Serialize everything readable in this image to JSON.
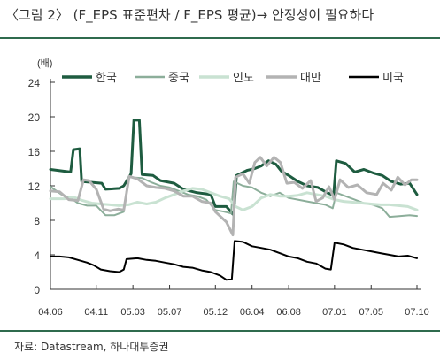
{
  "title": "〈그림 2〉 (F_EPS 표준편차 / F_EPS 평균)→ 안정성이 필요하다",
  "source": "자료: Datastream,  하나대투증권",
  "chart_data": {
    "type": "line",
    "title": "〈그림 2〉 (F_EPS 표준편차 / F_EPS 평균)→ 안정성이 필요하다",
    "ylabel": "(배)",
    "ylim": [
      0,
      24
    ],
    "yticks": [
      0,
      4,
      8,
      12,
      16,
      20,
      24
    ],
    "xlim": [
      0,
      40
    ],
    "xticks": [
      {
        "x": 0,
        "label": "04.06"
      },
      {
        "x": 5,
        "label": "04.11"
      },
      {
        "x": 9,
        "label": "05.03"
      },
      {
        "x": 13,
        "label": "05.07"
      },
      {
        "x": 18,
        "label": "05.12"
      },
      {
        "x": 22,
        "label": "06.04"
      },
      {
        "x": 26,
        "label": "06.08"
      },
      {
        "x": 31,
        "label": "07.01"
      },
      {
        "x": 35,
        "label": "07.05"
      },
      {
        "x": 40,
        "label": "07.10"
      }
    ],
    "grid": false,
    "legend_position": "top",
    "series": [
      {
        "name": "한국",
        "color": "#1e5c40",
        "width": 3,
        "points": [
          [
            0,
            13.9
          ],
          [
            1.4,
            13.7
          ],
          [
            2.2,
            13.6
          ],
          [
            2.5,
            16.2
          ],
          [
            3.2,
            16.3
          ],
          [
            3.4,
            12.5
          ],
          [
            4.5,
            12.4
          ],
          [
            5.6,
            12.3
          ],
          [
            6,
            11.6
          ],
          [
            7.5,
            11.7
          ],
          [
            8,
            12.0
          ],
          [
            8.8,
            13.4
          ],
          [
            9.1,
            19.6
          ],
          [
            9.7,
            19.6
          ],
          [
            10,
            13.3
          ],
          [
            11.2,
            13.2
          ],
          [
            12,
            12.6
          ],
          [
            13.5,
            12.3
          ],
          [
            14.5,
            11.6
          ],
          [
            16,
            11.2
          ],
          [
            17.5,
            11.0
          ],
          [
            18,
            9.6
          ],
          [
            19.2,
            9.6
          ],
          [
            20,
            8.6
          ],
          [
            20.3,
            13.2
          ],
          [
            21.5,
            13.8
          ],
          [
            22.3,
            14.0
          ],
          [
            23,
            14.3
          ],
          [
            23.8,
            14.9
          ],
          [
            24.6,
            14.5
          ],
          [
            25.2,
            13.7
          ],
          [
            26,
            13.2
          ],
          [
            27,
            12.5
          ],
          [
            28,
            12.0
          ],
          [
            29.2,
            11.8
          ],
          [
            30.2,
            11.2
          ],
          [
            30.9,
            10.9
          ],
          [
            31.2,
            14.9
          ],
          [
            32.2,
            14.6
          ],
          [
            33.2,
            13.6
          ],
          [
            34.2,
            13.9
          ],
          [
            35.2,
            13.5
          ],
          [
            36.2,
            13.2
          ],
          [
            37.2,
            12.5
          ],
          [
            38.2,
            12.2
          ],
          [
            39.2,
            12.3
          ],
          [
            40,
            11.0
          ]
        ]
      },
      {
        "name": "중국",
        "color": "#8cae9a",
        "width": 2,
        "points": [
          [
            0,
            11.9
          ],
          [
            1.2,
            11.0
          ],
          [
            2.2,
            10.6
          ],
          [
            3,
            10.0
          ],
          [
            4,
            9.7
          ],
          [
            5,
            9.7
          ],
          [
            6,
            8.6
          ],
          [
            7,
            8.6
          ],
          [
            8,
            9.0
          ],
          [
            8.5,
            13.0
          ],
          [
            10,
            12.9
          ],
          [
            11,
            12.4
          ],
          [
            12,
            12.0
          ],
          [
            13,
            11.8
          ],
          [
            14,
            11.4
          ],
          [
            15,
            11.0
          ],
          [
            16,
            10.8
          ],
          [
            17,
            10.4
          ],
          [
            18,
            9.2
          ],
          [
            19,
            9.0
          ],
          [
            19.7,
            8.8
          ],
          [
            20,
            12.5
          ],
          [
            21,
            12.0
          ],
          [
            22,
            11.8
          ],
          [
            23,
            11.2
          ],
          [
            24,
            10.8
          ],
          [
            25,
            11.2
          ],
          [
            26,
            10.6
          ],
          [
            27,
            10.4
          ],
          [
            28,
            10.2
          ],
          [
            29,
            10.0
          ],
          [
            30,
            9.8
          ],
          [
            30.8,
            9.4
          ],
          [
            31.2,
            11.2
          ],
          [
            32.2,
            10.8
          ],
          [
            33.2,
            10.4
          ],
          [
            34.2,
            10.0
          ],
          [
            35.2,
            9.8
          ],
          [
            36.2,
            9.4
          ],
          [
            37,
            8.4
          ],
          [
            38.2,
            8.5
          ],
          [
            39.2,
            8.6
          ],
          [
            40,
            8.5
          ]
        ]
      },
      {
        "name": "인도",
        "color": "#c9e2d2",
        "width": 3,
        "points": [
          [
            0,
            10.5
          ],
          [
            1.5,
            10.5
          ],
          [
            2.5,
            10.7
          ],
          [
            3.5,
            10.3
          ],
          [
            4.5,
            10.0
          ],
          [
            5.5,
            9.9
          ],
          [
            6.5,
            9.8
          ],
          [
            7.5,
            9.7
          ],
          [
            8.5,
            9.8
          ],
          [
            9.5,
            10.1
          ],
          [
            10.5,
            9.9
          ],
          [
            11.5,
            10.1
          ],
          [
            12.5,
            10.6
          ],
          [
            13.5,
            11.0
          ],
          [
            14.5,
            11.4
          ],
          [
            15.5,
            11.7
          ],
          [
            16.5,
            11.6
          ],
          [
            17.5,
            11.2
          ],
          [
            18.5,
            10.8
          ],
          [
            19.5,
            10.5
          ],
          [
            20.2,
            9.6
          ],
          [
            21,
            9.2
          ],
          [
            22,
            9.6
          ],
          [
            23,
            10.6
          ],
          [
            24,
            11.0
          ],
          [
            25,
            10.8
          ],
          [
            26,
            10.8
          ],
          [
            27,
            10.9
          ],
          [
            28,
            11.2
          ],
          [
            29,
            11.0
          ],
          [
            30,
            10.8
          ],
          [
            31,
            10.4
          ],
          [
            32,
            10.2
          ],
          [
            33,
            10.1
          ],
          [
            34,
            10.0
          ],
          [
            35,
            9.9
          ],
          [
            36,
            9.8
          ],
          [
            37,
            9.8
          ],
          [
            38,
            9.7
          ],
          [
            39,
            9.6
          ],
          [
            40,
            9.2
          ]
        ]
      },
      {
        "name": "대만",
        "color": "#b3b3b3",
        "width": 3,
        "points": [
          [
            0,
            11.4
          ],
          [
            1,
            11.3
          ],
          [
            2,
            10.4
          ],
          [
            3,
            10.3
          ],
          [
            3.6,
            12.7
          ],
          [
            4.2,
            12.6
          ],
          [
            5,
            11.6
          ],
          [
            5.8,
            9.3
          ],
          [
            6.5,
            9.1
          ],
          [
            7.4,
            9.3
          ],
          [
            8,
            9.2
          ],
          [
            8.6,
            13.1
          ],
          [
            9.5,
            12.8
          ],
          [
            10.5,
            12.0
          ],
          [
            11.5,
            11.8
          ],
          [
            12.5,
            11.7
          ],
          [
            13.5,
            11.4
          ],
          [
            14.5,
            10.8
          ],
          [
            15.5,
            10.8
          ],
          [
            16.5,
            10.2
          ],
          [
            17.5,
            10.0
          ],
          [
            18,
            9.0
          ],
          [
            19.2,
            7.8
          ],
          [
            19.9,
            6.3
          ],
          [
            20.2,
            13.0
          ],
          [
            21,
            13.4
          ],
          [
            21.7,
            12.3
          ],
          [
            22.3,
            14.7
          ],
          [
            22.9,
            15.3
          ],
          [
            23.6,
            14.3
          ],
          [
            24.4,
            15.3
          ],
          [
            25.1,
            14.7
          ],
          [
            25.8,
            12.3
          ],
          [
            26.6,
            12.4
          ],
          [
            27.5,
            11.7
          ],
          [
            28.4,
            12.6
          ],
          [
            29,
            10.2
          ],
          [
            29.7,
            10.6
          ],
          [
            30.4,
            11.9
          ],
          [
            31,
            10.4
          ],
          [
            31.6,
            12.7
          ],
          [
            32.5,
            11.8
          ],
          [
            33.5,
            12.1
          ],
          [
            34.5,
            11.2
          ],
          [
            35.6,
            11.0
          ],
          [
            36.3,
            12.3
          ],
          [
            37.2,
            11.5
          ],
          [
            37.9,
            13.0
          ],
          [
            38.7,
            12.1
          ],
          [
            39.4,
            12.7
          ],
          [
            40,
            12.7
          ]
        ]
      },
      {
        "name": "미국",
        "color": "#000000",
        "width": 2,
        "points": [
          [
            0,
            3.8
          ],
          [
            1,
            3.8
          ],
          [
            2,
            3.7
          ],
          [
            3,
            3.4
          ],
          [
            4,
            3.1
          ],
          [
            4.7,
            2.8
          ],
          [
            5.5,
            2.3
          ],
          [
            6.5,
            2.1
          ],
          [
            7.5,
            2.0
          ],
          [
            8,
            2.3
          ],
          [
            8.3,
            3.5
          ],
          [
            9.5,
            3.6
          ],
          [
            10.5,
            3.4
          ],
          [
            11.5,
            3.3
          ],
          [
            12.5,
            3.1
          ],
          [
            13.5,
            2.9
          ],
          [
            14.5,
            2.6
          ],
          [
            15.5,
            2.5
          ],
          [
            16.5,
            2.2
          ],
          [
            17.5,
            2.0
          ],
          [
            18.5,
            1.6
          ],
          [
            19.2,
            1.1
          ],
          [
            19.8,
            1.2
          ],
          [
            20.1,
            5.6
          ],
          [
            21,
            5.5
          ],
          [
            22,
            5.0
          ],
          [
            23,
            4.8
          ],
          [
            24,
            4.6
          ],
          [
            25,
            4.2
          ],
          [
            26,
            3.8
          ],
          [
            27,
            3.6
          ],
          [
            28,
            3.2
          ],
          [
            29,
            3.0
          ],
          [
            30,
            2.4
          ],
          [
            30.6,
            2.3
          ],
          [
            31,
            5.4
          ],
          [
            32,
            5.2
          ],
          [
            33,
            4.8
          ],
          [
            34,
            4.6
          ],
          [
            35,
            4.4
          ],
          [
            36,
            4.2
          ],
          [
            37,
            4.0
          ],
          [
            38,
            3.8
          ],
          [
            39,
            3.9
          ],
          [
            40,
            3.6
          ]
        ]
      }
    ]
  }
}
